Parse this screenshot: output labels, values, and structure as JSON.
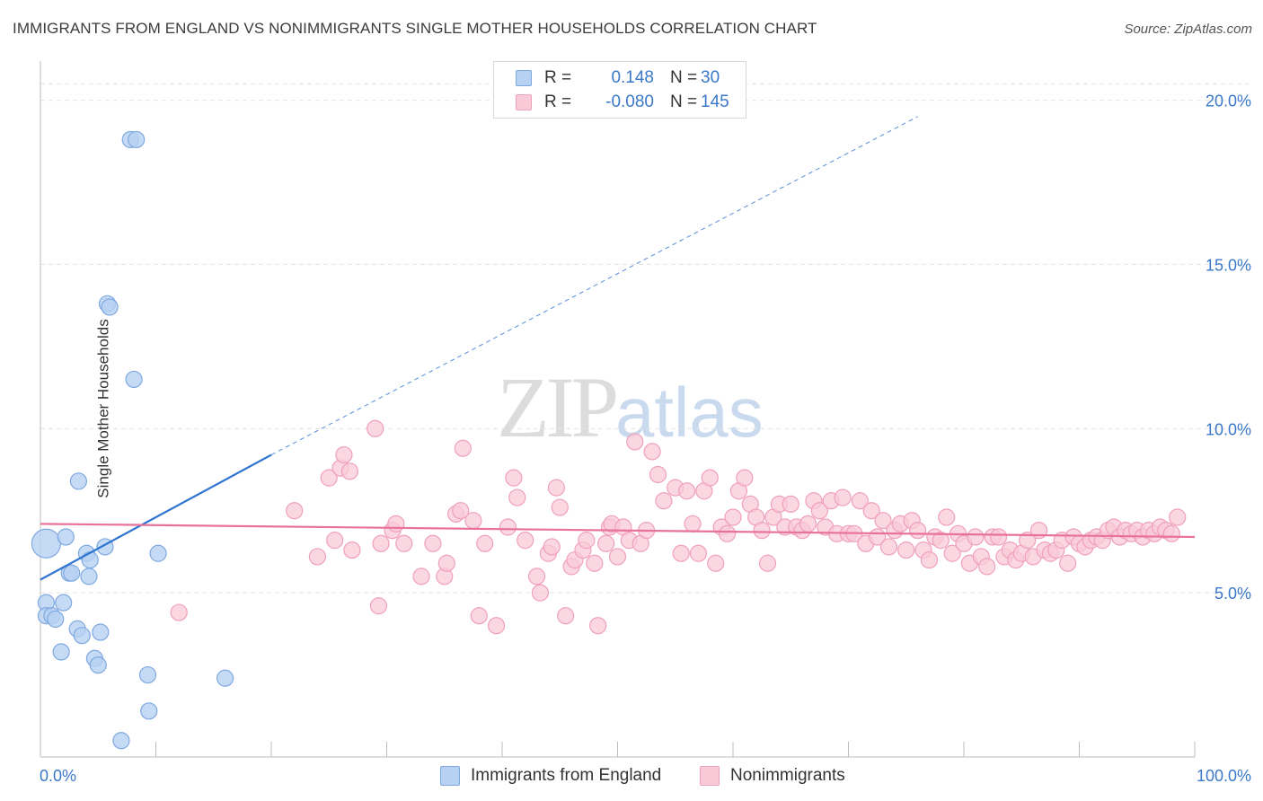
{
  "title": "IMMIGRANTS FROM ENGLAND VS NONIMMIGRANTS SINGLE MOTHER HOUSEHOLDS CORRELATION CHART",
  "source": "Source: ZipAtlas.com",
  "watermark": {
    "zip": "ZIP",
    "atlas": "atlas"
  },
  "legend_top": {
    "blue": {
      "r_label": "R =",
      "r_value": "0.148",
      "n_label": "N =",
      "n_value": "30"
    },
    "pink": {
      "r_label": "R =",
      "r_value": "-0.080",
      "n_label": "N =",
      "n_value": "145"
    }
  },
  "legend_bottom": {
    "blue": "Immigrants from England",
    "pink": "Nonimmigrants"
  },
  "colors": {
    "blue_fill": "#b7d1f2",
    "blue_stroke": "#7ea9e0",
    "blue_line": "#2f74d0",
    "pink_fill": "#f9c9d8",
    "pink_stroke": "#efa0bb",
    "pink_line": "#e8729a",
    "grid": "#e3e3e3",
    "tick_text": "#3a78c9"
  },
  "chart_data": {
    "type": "scatter",
    "title": "IMMIGRANTS FROM ENGLAND VS NONIMMIGRANTS SINGLE MOTHER HOUSEHOLDS CORRELATION CHART",
    "xlabel": "",
    "ylabel": "Single Mother Households",
    "xlim": [
      0,
      100
    ],
    "ylim": [
      0,
      21
    ],
    "x_ticks": [
      "0.0%",
      "100.0%"
    ],
    "y_ticks": [
      {
        "value": 5,
        "label": "5.0%"
      },
      {
        "value": 10,
        "label": "10.0%"
      },
      {
        "value": 15,
        "label": "15.0%"
      },
      {
        "value": 20,
        "label": "20.0%"
      }
    ],
    "series": [
      {
        "name": "Immigrants from England",
        "color": "blue",
        "trend": {
          "x0": 0,
          "y0": 5.4,
          "x1": 20,
          "y1": 9.2,
          "dash_to_x": 76,
          "dash_to_y": 19.5
        },
        "points": [
          [
            0.5,
            6.5,
            4
          ],
          [
            0.5,
            4.7,
            1
          ],
          [
            0.5,
            4.3,
            1
          ],
          [
            1.0,
            4.3,
            1
          ],
          [
            1.3,
            4.2,
            1
          ],
          [
            2.0,
            4.7,
            1
          ],
          [
            2.2,
            6.7,
            1
          ],
          [
            1.8,
            3.2,
            1
          ],
          [
            2.5,
            5.6,
            1
          ],
          [
            2.7,
            5.6,
            1
          ],
          [
            3.3,
            8.4,
            1
          ],
          [
            3.2,
            3.9,
            1
          ],
          [
            3.6,
            3.7,
            1
          ],
          [
            4.0,
            6.2,
            1
          ],
          [
            4.2,
            5.5,
            1
          ],
          [
            4.3,
            6.0,
            1
          ],
          [
            4.7,
            3.0,
            1
          ],
          [
            5.0,
            2.8,
            1
          ],
          [
            5.2,
            3.8,
            1
          ],
          [
            5.6,
            6.4,
            1
          ],
          [
            5.8,
            13.8,
            1
          ],
          [
            6.0,
            13.7,
            1
          ],
          [
            7.0,
            0.5,
            1
          ],
          [
            7.8,
            18.8,
            1
          ],
          [
            8.3,
            18.8,
            1
          ],
          [
            8.1,
            11.5,
            1
          ],
          [
            9.3,
            2.5,
            1
          ],
          [
            9.4,
            1.4,
            1
          ],
          [
            10.2,
            6.2,
            1
          ],
          [
            16.0,
            2.4,
            1
          ]
        ]
      },
      {
        "name": "Nonimmigrants",
        "color": "pink",
        "trend": {
          "x0": 0,
          "y0": 7.1,
          "x1": 100,
          "y1": 6.7
        },
        "points": [
          [
            12,
            4.4
          ],
          [
            22,
            7.5
          ],
          [
            24,
            6.1
          ],
          [
            25,
            8.5
          ],
          [
            25.5,
            6.6
          ],
          [
            26,
            8.8
          ],
          [
            26.3,
            9.2
          ],
          [
            26.8,
            8.7
          ],
          [
            27,
            6.3
          ],
          [
            29,
            10.0
          ],
          [
            29.3,
            4.6
          ],
          [
            29.5,
            6.5
          ],
          [
            30.5,
            6.9
          ],
          [
            30.8,
            7.1
          ],
          [
            31.5,
            6.5
          ],
          [
            33,
            5.5
          ],
          [
            34,
            6.5
          ],
          [
            35,
            5.5
          ],
          [
            35.2,
            5.9
          ],
          [
            36,
            7.4
          ],
          [
            36.4,
            7.5
          ],
          [
            36.6,
            9.4
          ],
          [
            37.5,
            7.2
          ],
          [
            38,
            4.3
          ],
          [
            38.5,
            6.5
          ],
          [
            39.5,
            4.0
          ],
          [
            40.5,
            7.0
          ],
          [
            41,
            8.5
          ],
          [
            41.3,
            7.9
          ],
          [
            42,
            6.6
          ],
          [
            43,
            5.5
          ],
          [
            43.3,
            5.0
          ],
          [
            44,
            6.2
          ],
          [
            44.3,
            6.4
          ],
          [
            44.7,
            8.2
          ],
          [
            45,
            7.6
          ],
          [
            45.5,
            4.3
          ],
          [
            46,
            5.8
          ],
          [
            46.3,
            6.0
          ],
          [
            47,
            6.3
          ],
          [
            47.3,
            6.6
          ],
          [
            48,
            5.9
          ],
          [
            48.3,
            4.0
          ],
          [
            49,
            6.5
          ],
          [
            49.3,
            7.0
          ],
          [
            49.5,
            7.1
          ],
          [
            50,
            6.1
          ],
          [
            50.5,
            7.0
          ],
          [
            51,
            6.6
          ],
          [
            51.5,
            9.6
          ],
          [
            52,
            6.5
          ],
          [
            52.5,
            6.9
          ],
          [
            53,
            9.3
          ],
          [
            53.5,
            8.6
          ],
          [
            54,
            7.8
          ],
          [
            55,
            8.2
          ],
          [
            55.5,
            6.2
          ],
          [
            56,
            8.1
          ],
          [
            56.5,
            7.1
          ],
          [
            57,
            6.2
          ],
          [
            57.5,
            8.1
          ],
          [
            58,
            8.5
          ],
          [
            58.5,
            5.9
          ],
          [
            59,
            7.0
          ],
          [
            59.5,
            6.8
          ],
          [
            60,
            7.3
          ],
          [
            60.5,
            8.1
          ],
          [
            61,
            8.5
          ],
          [
            61.5,
            7.7
          ],
          [
            62,
            7.3
          ],
          [
            62.5,
            6.9
          ],
          [
            63,
            5.9
          ],
          [
            63.5,
            7.3
          ],
          [
            64,
            7.7
          ],
          [
            64.5,
            7.0
          ],
          [
            65,
            7.7
          ],
          [
            65.5,
            7.0
          ],
          [
            66,
            6.9
          ],
          [
            66.5,
            7.1
          ],
          [
            67,
            7.8
          ],
          [
            67.5,
            7.5
          ],
          [
            68,
            7.0
          ],
          [
            68.5,
            7.8
          ],
          [
            69,
            6.8
          ],
          [
            69.5,
            7.9
          ],
          [
            70,
            6.8
          ],
          [
            70.5,
            6.8
          ],
          [
            71,
            7.8
          ],
          [
            71.5,
            6.5
          ],
          [
            72,
            7.5
          ],
          [
            72.5,
            6.7
          ],
          [
            73,
            7.2
          ],
          [
            73.5,
            6.4
          ],
          [
            74,
            6.9
          ],
          [
            74.5,
            7.1
          ],
          [
            75,
            6.3
          ],
          [
            75.5,
            7.2
          ],
          [
            76,
            6.9
          ],
          [
            76.5,
            6.3
          ],
          [
            77,
            6.0
          ],
          [
            77.5,
            6.7
          ],
          [
            78,
            6.6
          ],
          [
            78.5,
            7.3
          ],
          [
            79,
            6.2
          ],
          [
            79.5,
            6.8
          ],
          [
            80,
            6.5
          ],
          [
            80.5,
            5.9
          ],
          [
            81,
            6.7
          ],
          [
            81.5,
            6.1
          ],
          [
            82,
            5.8
          ],
          [
            82.5,
            6.7
          ],
          [
            83,
            6.7
          ],
          [
            83.5,
            6.1
          ],
          [
            84,
            6.3
          ],
          [
            84.5,
            6.0
          ],
          [
            85,
            6.2
          ],
          [
            85.5,
            6.6
          ],
          [
            86,
            6.1
          ],
          [
            86.5,
            6.9
          ],
          [
            87,
            6.3
          ],
          [
            87.5,
            6.2
          ],
          [
            88,
            6.3
          ],
          [
            88.5,
            6.6
          ],
          [
            89,
            5.9
          ],
          [
            89.5,
            6.7
          ],
          [
            90,
            6.5
          ],
          [
            90.5,
            6.4
          ],
          [
            91,
            6.6
          ],
          [
            91.5,
            6.7
          ],
          [
            92,
            6.6
          ],
          [
            92.5,
            6.9
          ],
          [
            93,
            7.0
          ],
          [
            93.5,
            6.7
          ],
          [
            94,
            6.9
          ],
          [
            94.5,
            6.8
          ],
          [
            95,
            6.9
          ],
          [
            95.5,
            6.7
          ],
          [
            96,
            6.9
          ],
          [
            96.5,
            6.8
          ],
          [
            97,
            7.0
          ],
          [
            97.5,
            6.9
          ],
          [
            98,
            6.8
          ],
          [
            98.5,
            7.3
          ]
        ]
      }
    ]
  }
}
